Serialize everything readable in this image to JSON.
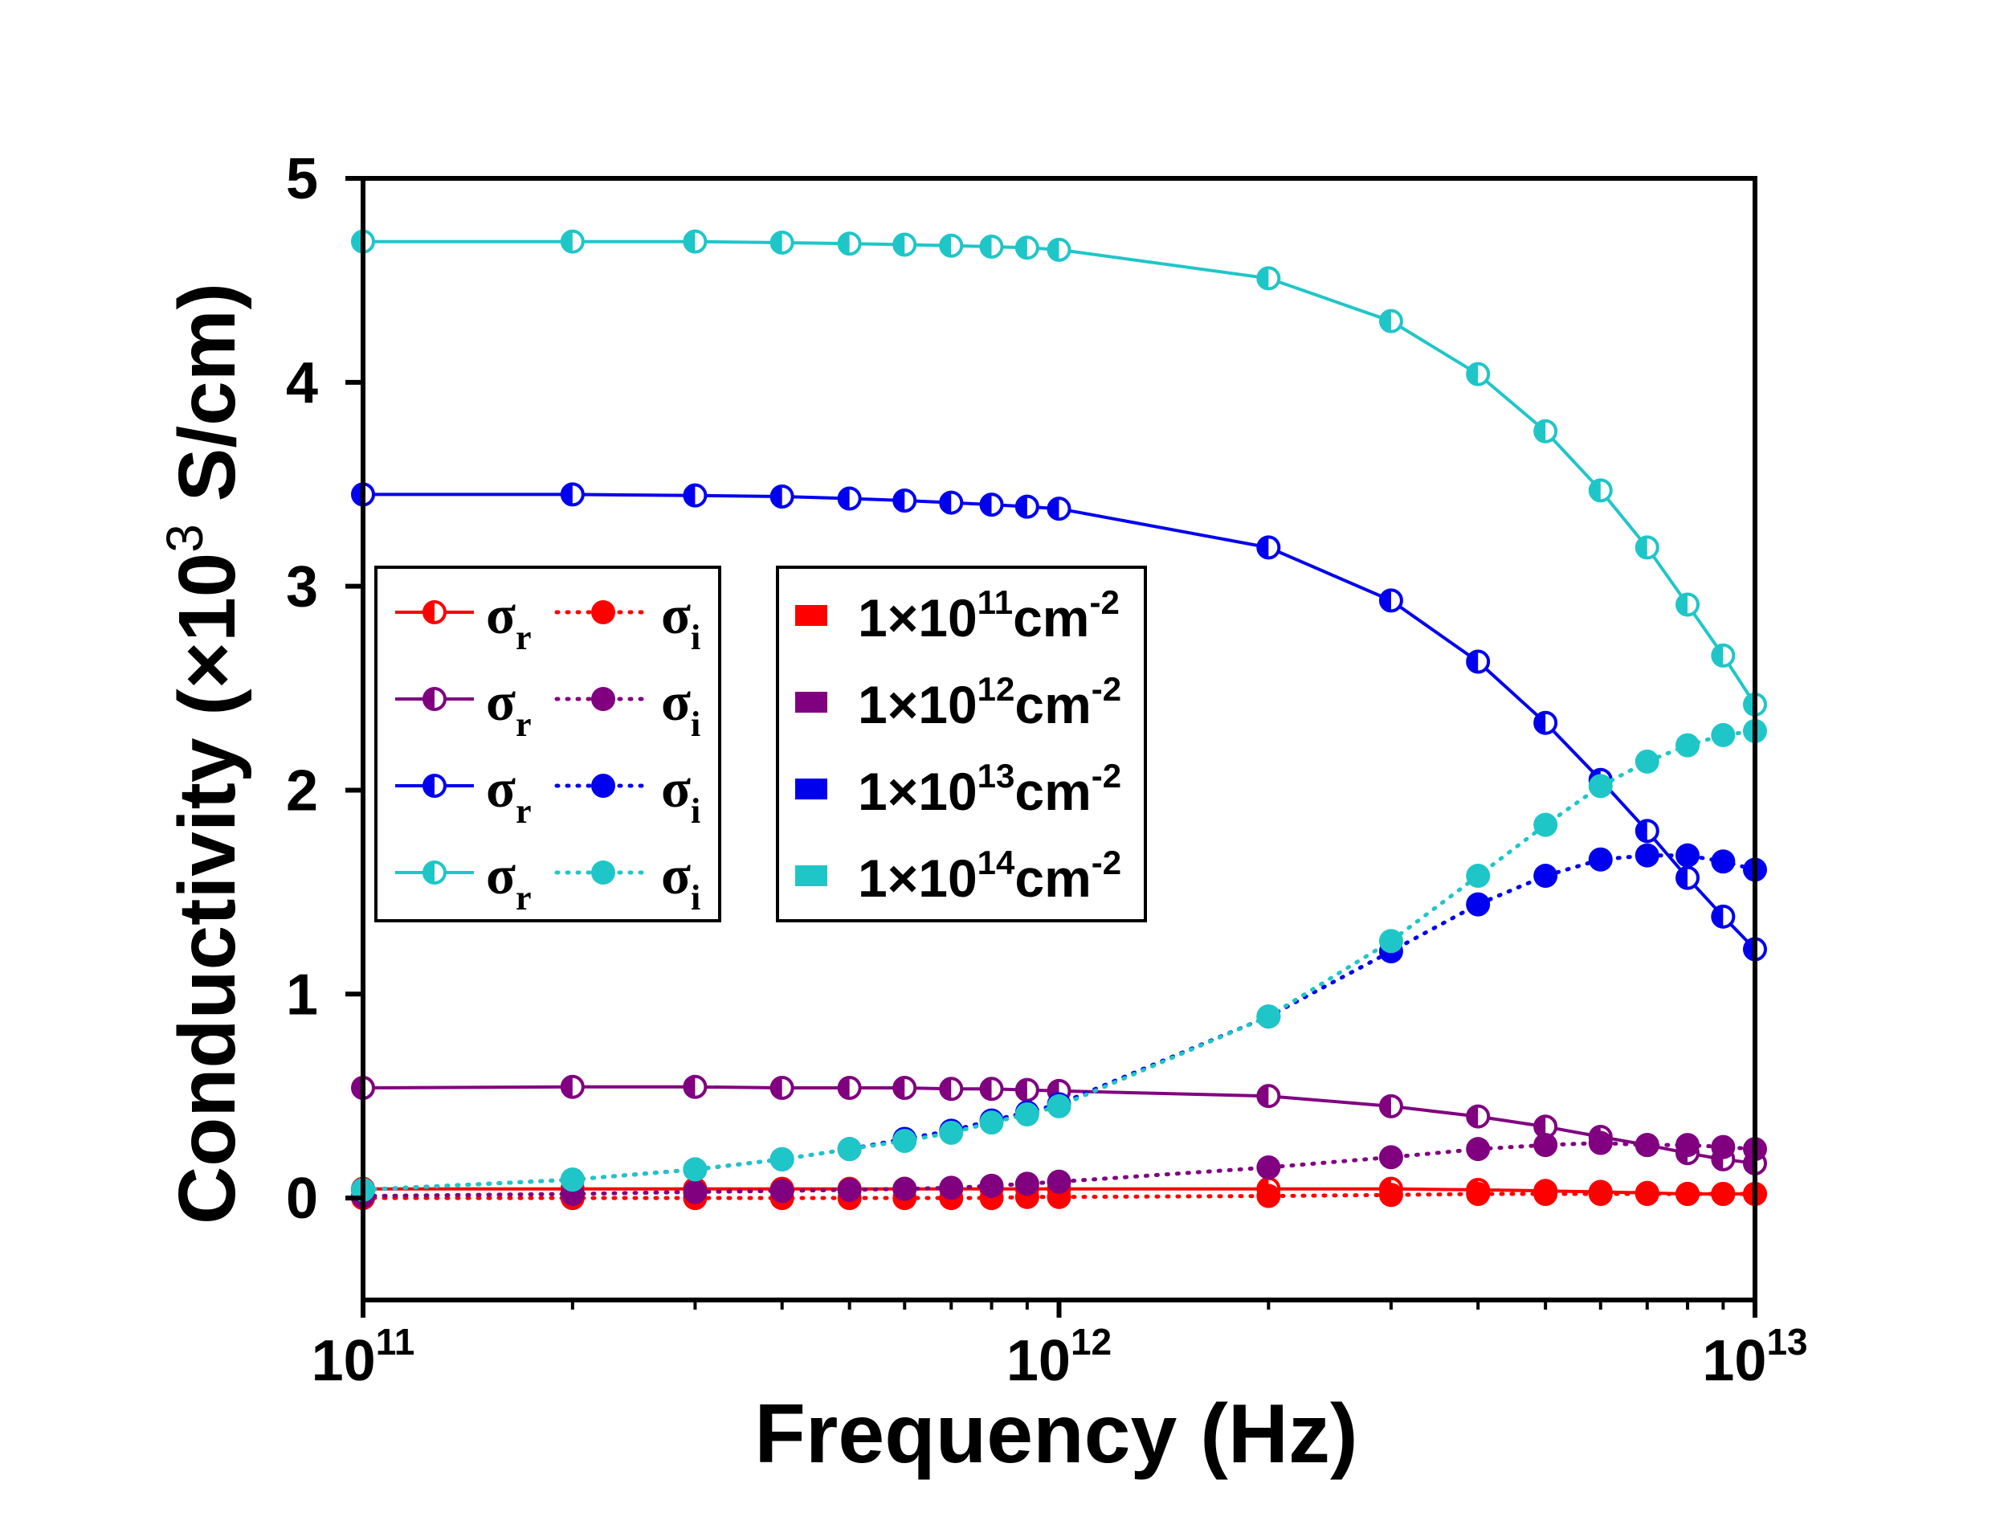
{
  "chart_data": {
    "type": "line",
    "xlabel": "Frequency (Hz)",
    "ylabel_prefix": "Conductivity (×10",
    "ylabel_exp": "3",
    "ylabel_suffix": " S/cm)",
    "x_scale": "log",
    "xlim": [
      100000000000.0,
      10000000000000.0
    ],
    "ylim": [
      -0.5,
      5
    ],
    "x_ticks": [
      {
        "base": "10",
        "exp": "11",
        "value": 100000000000.0
      },
      {
        "base": "10",
        "exp": "12",
        "value": 1000000000000.0
      },
      {
        "base": "10",
        "exp": "13",
        "value": 10000000000000.0
      }
    ],
    "y_ticks": [
      {
        "label": "0",
        "value": 0
      },
      {
        "label": "1",
        "value": 1
      },
      {
        "label": "2",
        "value": 2
      },
      {
        "label": "3",
        "value": 3
      },
      {
        "label": "4",
        "value": 4
      },
      {
        "label": "5",
        "value": 5
      }
    ],
    "grid": false,
    "x": [
      100000000000.0,
      200000000000.0,
      300000000000.0,
      400000000000.0,
      500000000000.0,
      600000000000.0,
      700000000000.0,
      800000000000.0,
      900000000000.0,
      1000000000000.0,
      2000000000000.0,
      3000000000000.0,
      4000000000000.0,
      5000000000000.0,
      6000000000000.0,
      7000000000000.0,
      8000000000000.0,
      9000000000000.0,
      10000000000000.0
    ],
    "series": [
      {
        "key": "r11",
        "component": "real",
        "density": "1e11",
        "color": "#ff0000",
        "values": [
          0.045,
          0.045,
          0.045,
          0.045,
          0.045,
          0.045,
          0.045,
          0.045,
          0.045,
          0.045,
          0.045,
          0.045,
          0.04,
          0.035,
          0.03,
          0.025,
          0.02,
          0.02,
          0.02
        ]
      },
      {
        "key": "i11",
        "component": "imaginary",
        "density": "1e11",
        "color": "#ff0000",
        "values": [
          0.0,
          0.0,
          0.0,
          0.0,
          0.0,
          0.0,
          0.0,
          0.0,
          0.005,
          0.005,
          0.01,
          0.015,
          0.02,
          0.02,
          0.02,
          0.02,
          0.02,
          0.02,
          0.02
        ]
      },
      {
        "key": "r12",
        "component": "real",
        "density": "1e12",
        "color": "#800080",
        "values": [
          0.54,
          0.545,
          0.545,
          0.54,
          0.54,
          0.54,
          0.535,
          0.535,
          0.53,
          0.525,
          0.5,
          0.45,
          0.4,
          0.35,
          0.3,
          0.26,
          0.22,
          0.19,
          0.17
        ]
      },
      {
        "key": "i12",
        "component": "imaginary",
        "density": "1e12",
        "color": "#800080",
        "values": [
          0.01,
          0.02,
          0.03,
          0.035,
          0.04,
          0.045,
          0.05,
          0.06,
          0.07,
          0.08,
          0.15,
          0.2,
          0.24,
          0.26,
          0.27,
          0.26,
          0.26,
          0.25,
          0.24
        ]
      },
      {
        "key": "r13",
        "component": "real",
        "density": "1e13",
        "color": "#0000ee",
        "values": [
          3.45,
          3.45,
          3.445,
          3.44,
          3.43,
          3.42,
          3.41,
          3.4,
          3.39,
          3.38,
          3.19,
          2.93,
          2.63,
          2.33,
          2.05,
          1.8,
          1.57,
          1.38,
          1.22
        ]
      },
      {
        "key": "i13",
        "component": "imaginary",
        "density": "1e13",
        "color": "#0000ee",
        "values": [
          0.04,
          0.09,
          0.14,
          0.19,
          0.24,
          0.29,
          0.33,
          0.38,
          0.42,
          0.46,
          0.89,
          1.21,
          1.44,
          1.58,
          1.66,
          1.68,
          1.68,
          1.65,
          1.61
        ]
      },
      {
        "key": "r14",
        "component": "real",
        "density": "1e14",
        "color": "#1fc6c8",
        "values": [
          4.69,
          4.69,
          4.69,
          4.685,
          4.68,
          4.675,
          4.67,
          4.665,
          4.66,
          4.65,
          4.51,
          4.3,
          4.04,
          3.76,
          3.47,
          3.19,
          2.91,
          2.66,
          2.42
        ]
      },
      {
        "key": "i14",
        "component": "imaginary",
        "density": "1e14",
        "color": "#1fc6c8",
        "values": [
          0.04,
          0.09,
          0.14,
          0.19,
          0.24,
          0.28,
          0.32,
          0.37,
          0.41,
          0.45,
          0.89,
          1.26,
          1.58,
          1.83,
          2.02,
          2.14,
          2.22,
          2.27,
          2.29
        ]
      }
    ],
    "legend_style": {
      "sigma": "σ",
      "sub_r": "r",
      "sub_i": "i",
      "rows": [
        "r11",
        "r12",
        "r13",
        "r14"
      ]
    },
    "legend_density": [
      {
        "key": "1e11",
        "color": "#ff0000",
        "prefix": "1×10",
        "exp": "11",
        "unit": "cm",
        "unit_exp": "-2"
      },
      {
        "key": "1e12",
        "color": "#800080",
        "prefix": "1×10",
        "exp": "12",
        "unit": "cm",
        "unit_exp": "-2"
      },
      {
        "key": "1e13",
        "color": "#0000ee",
        "prefix": "1×10",
        "exp": "13",
        "unit": "cm",
        "unit_exp": "-2"
      },
      {
        "key": "1e14",
        "color": "#1fc6c8",
        "prefix": "1×10",
        "exp": "14",
        "unit": "cm",
        "unit_exp": "-2"
      }
    ]
  }
}
